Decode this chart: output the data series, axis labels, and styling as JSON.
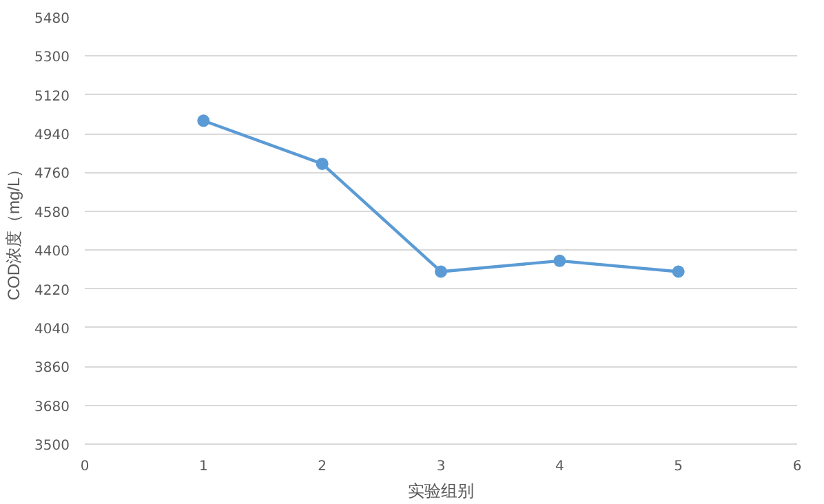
{
  "chart_data": {
    "type": "line",
    "xlabel": "实验组别",
    "ylabel": "COD浓度（mg/L）",
    "x": [
      1,
      2,
      3,
      4,
      5
    ],
    "series": [
      {
        "color": "#5b9bd5",
        "values": [
          5000,
          4800,
          4300,
          4350,
          4300
        ]
      }
    ],
    "xlim": [
      0,
      6
    ],
    "xticks": [
      0,
      1,
      2,
      3,
      4,
      5,
      6
    ],
    "ylim": [
      3500,
      5480
    ],
    "yticks": [
      3500,
      3680,
      3860,
      4040,
      4220,
      4400,
      4580,
      4760,
      4940,
      5120,
      5300,
      5480
    ],
    "grid": "y",
    "marker": "circle",
    "line_style": "solid"
  }
}
